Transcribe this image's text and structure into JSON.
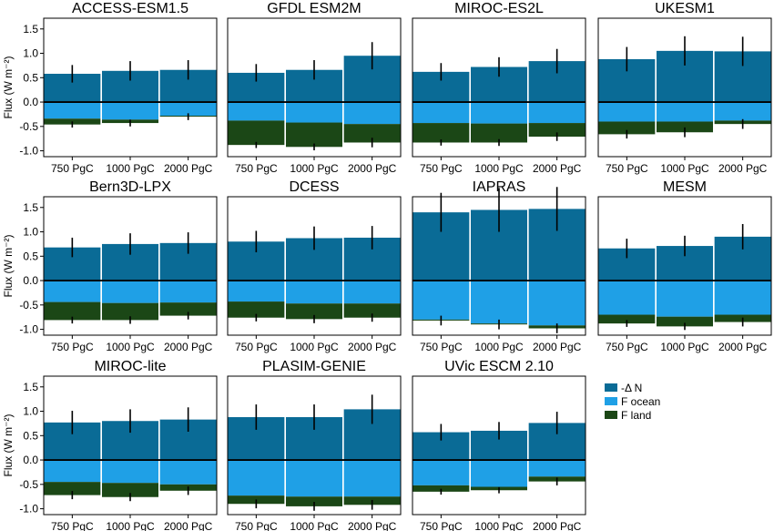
{
  "colors": {
    "delta_n": "#0A6B96",
    "f_ocean": "#1FA0E6",
    "f_land": "#1B4716",
    "axis": "#000000",
    "errorbar": "#000000"
  },
  "legend": [
    {
      "label": "-Δ N",
      "color": "#0A6B96"
    },
    {
      "label": "F ocean",
      "color": "#1FA0E6"
    },
    {
      "label": "F land",
      "color": "#1B4716"
    }
  ],
  "ylabel": "Flux (W m⁻²)",
  "yticks": [
    "1.5",
    "1.0",
    "0.5",
    "0.0",
    "-0.5",
    "-1.0"
  ],
  "chart_data": [
    {
      "type": "bar",
      "title": "ACCESS-ESM1.5",
      "categories": [
        "750 PgC",
        "1000 PgC",
        "2000 PgC"
      ],
      "ylim": [
        -1.12,
        1.72
      ],
      "series": [
        {
          "name": "-Δ N",
          "values": [
            0.58,
            0.64,
            0.66
          ],
          "errors": [
            0.18,
            0.2,
            0.2
          ]
        },
        {
          "name": "F ocean",
          "values": [
            -0.34,
            -0.36,
            -0.28
          ]
        },
        {
          "name": "F land",
          "values": [
            -0.12,
            -0.07,
            -0.02
          ]
        }
      ]
    },
    {
      "type": "bar",
      "title": "GFDL ESM2M",
      "categories": [
        "750 PgC",
        "1000 PgC",
        "2000 PgC"
      ],
      "ylim": [
        -1.12,
        1.72
      ],
      "series": [
        {
          "name": "-Δ N",
          "values": [
            0.6,
            0.66,
            0.95
          ],
          "errors": [
            0.18,
            0.2,
            0.28
          ]
        },
        {
          "name": "F ocean",
          "values": [
            -0.38,
            -0.42,
            -0.45
          ]
        },
        {
          "name": "F land",
          "values": [
            -0.5,
            -0.5,
            -0.38
          ]
        }
      ]
    },
    {
      "type": "bar",
      "title": "MIROC-ES2L",
      "categories": [
        "750 PgC",
        "1000 PgC",
        "2000 PgC"
      ],
      "ylim": [
        -1.12,
        1.72
      ],
      "series": [
        {
          "name": "-Δ N",
          "values": [
            0.62,
            0.72,
            0.84
          ],
          "errors": [
            0.18,
            0.2,
            0.25
          ]
        },
        {
          "name": "F ocean",
          "values": [
            -0.43,
            -0.44,
            -0.43
          ]
        },
        {
          "name": "F land",
          "values": [
            -0.4,
            -0.39,
            -0.28
          ]
        }
      ]
    },
    {
      "type": "bar",
      "title": "UKESM1",
      "categories": [
        "750 PgC",
        "1000 PgC",
        "2000 PgC"
      ],
      "ylim": [
        -1.12,
        1.72
      ],
      "series": [
        {
          "name": "-Δ N",
          "values": [
            0.88,
            1.05,
            1.04
          ],
          "errors": [
            0.25,
            0.3,
            0.3
          ]
        },
        {
          "name": "F ocean",
          "values": [
            -0.4,
            -0.4,
            -0.38
          ]
        },
        {
          "name": "F land",
          "values": [
            -0.26,
            -0.22,
            -0.07
          ]
        }
      ]
    },
    {
      "type": "bar",
      "title": "Bern3D-LPX",
      "categories": [
        "750 PgC",
        "1000 PgC",
        "2000 PgC"
      ],
      "ylim": [
        -1.12,
        1.72
      ],
      "series": [
        {
          "name": "-Δ N",
          "values": [
            0.68,
            0.75,
            0.77
          ],
          "errors": [
            0.2,
            0.22,
            0.22
          ]
        },
        {
          "name": "F ocean",
          "values": [
            -0.44,
            -0.46,
            -0.45
          ]
        },
        {
          "name": "F land",
          "values": [
            -0.37,
            -0.35,
            -0.27
          ]
        }
      ]
    },
    {
      "type": "bar",
      "title": "DCESS",
      "categories": [
        "750 PgC",
        "1000 PgC",
        "2000 PgC"
      ],
      "ylim": [
        -1.12,
        1.72
      ],
      "series": [
        {
          "name": "-Δ N",
          "values": [
            0.8,
            0.87,
            0.88
          ],
          "errors": [
            0.22,
            0.24,
            0.24
          ]
        },
        {
          "name": "F ocean",
          "values": [
            -0.43,
            -0.47,
            -0.47
          ]
        },
        {
          "name": "F land",
          "values": [
            -0.33,
            -0.32,
            -0.29
          ]
        }
      ]
    },
    {
      "type": "bar",
      "title": "IAPRAS",
      "categories": [
        "750 PgC",
        "1000 PgC",
        "2000 PgC"
      ],
      "ylim": [
        -1.12,
        1.72
      ],
      "series": [
        {
          "name": "-Δ N",
          "values": [
            1.4,
            1.45,
            1.47
          ],
          "errors": [
            0.4,
            0.45,
            0.45
          ]
        },
        {
          "name": "F ocean",
          "values": [
            -0.8,
            -0.88,
            -0.92
          ]
        },
        {
          "name": "F land",
          "values": [
            -0.02,
            -0.02,
            -0.06
          ]
        }
      ]
    },
    {
      "type": "bar",
      "title": "MESM",
      "categories": [
        "750 PgC",
        "1000 PgC",
        "2000 PgC"
      ],
      "ylim": [
        -1.12,
        1.72
      ],
      "series": [
        {
          "name": "-Δ N",
          "values": [
            0.66,
            0.71,
            0.9
          ],
          "errors": [
            0.2,
            0.21,
            0.26
          ]
        },
        {
          "name": "F ocean",
          "values": [
            -0.7,
            -0.74,
            -0.7
          ]
        },
        {
          "name": "F land",
          "values": [
            -0.18,
            -0.2,
            -0.15
          ]
        }
      ]
    },
    {
      "type": "bar",
      "title": "MIROC-lite",
      "categories": [
        "750 PgC",
        "1000 PgC",
        "2000 PgC"
      ],
      "ylim": [
        -1.12,
        1.72
      ],
      "series": [
        {
          "name": "-Δ N",
          "values": [
            0.77,
            0.8,
            0.83
          ],
          "errors": [
            0.24,
            0.24,
            0.25
          ]
        },
        {
          "name": "F ocean",
          "values": [
            -0.45,
            -0.47,
            -0.5
          ]
        },
        {
          "name": "F land",
          "values": [
            -0.27,
            -0.29,
            -0.13
          ]
        }
      ]
    },
    {
      "type": "bar",
      "title": "PLASIM-GENIE",
      "categories": [
        "750 PgC",
        "1000 PgC",
        "2000 PgC"
      ],
      "ylim": [
        -1.12,
        1.72
      ],
      "series": [
        {
          "name": "-Δ N",
          "values": [
            0.88,
            0.88,
            1.04
          ],
          "errors": [
            0.26,
            0.26,
            0.3
          ]
        },
        {
          "name": "F ocean",
          "values": [
            -0.73,
            -0.75,
            -0.75
          ]
        },
        {
          "name": "F land",
          "values": [
            -0.17,
            -0.2,
            -0.17
          ]
        }
      ]
    },
    {
      "type": "bar",
      "title": "UVic ESCM 2.10",
      "categories": [
        "750 PgC",
        "1000 PgC",
        "2000 PgC"
      ],
      "ylim": [
        -1.12,
        1.72
      ],
      "series": [
        {
          "name": "-Δ N",
          "values": [
            0.57,
            0.6,
            0.76
          ],
          "errors": [
            0.17,
            0.18,
            0.23
          ]
        },
        {
          "name": "F ocean",
          "values": [
            -0.52,
            -0.55,
            -0.34
          ]
        },
        {
          "name": "F land",
          "values": [
            -0.13,
            -0.07,
            -0.1
          ]
        }
      ]
    }
  ]
}
